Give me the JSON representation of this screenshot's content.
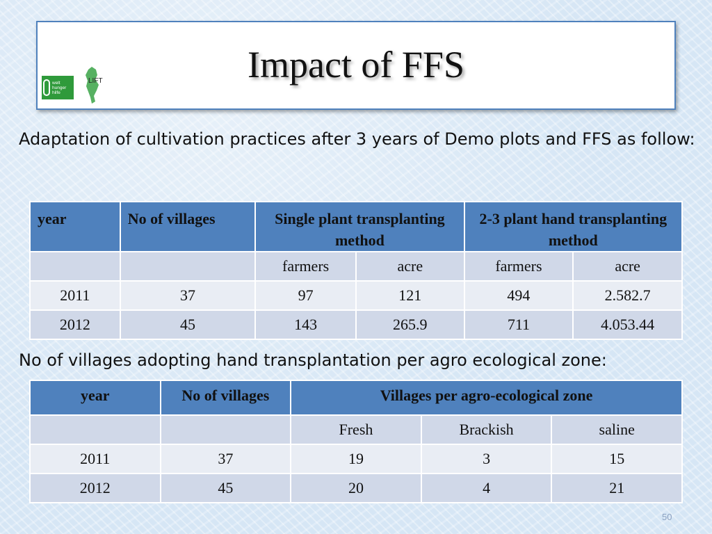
{
  "header": {
    "title": "Impact of FFS",
    "logo_whh_lines": [
      "welt",
      "hunger",
      "hilfe"
    ],
    "logo_lift_text": "LIFT"
  },
  "intro_text": "Adaptation  of cultivation practices after 3 years of Demo plots and FFS as follow:",
  "table1": {
    "headers": [
      "year",
      "No of villages",
      "Single plant transplanting method",
      "2-3 plant hand transplanting method"
    ],
    "subheaders": [
      "",
      "",
      "farmers",
      "acre",
      "farmers",
      "acre"
    ],
    "rows": [
      [
        "2011",
        "37",
        "97",
        "121",
        "494",
        "2.582.7"
      ],
      [
        "2012",
        "45",
        "143",
        "265.9",
        "711",
        "4.053.44"
      ]
    ]
  },
  "section2_text": "No of villages adopting hand transplantation per agro ecological zone:",
  "table2": {
    "headers": [
      "year",
      "No of villages",
      "Villages per agro-ecological zone"
    ],
    "subheaders": [
      "",
      "",
      "Fresh",
      "Brackish",
      "saline"
    ],
    "rows": [
      [
        "2011",
        "37",
        "19",
        "3",
        "15"
      ],
      [
        "2012",
        "45",
        "20",
        "4",
        "21"
      ]
    ]
  },
  "footer": {
    "page_number": "50"
  },
  "colors": {
    "header_blue": "#4f81bd",
    "row_light": "#e9edf4",
    "row_mid": "#d0d8e8"
  }
}
